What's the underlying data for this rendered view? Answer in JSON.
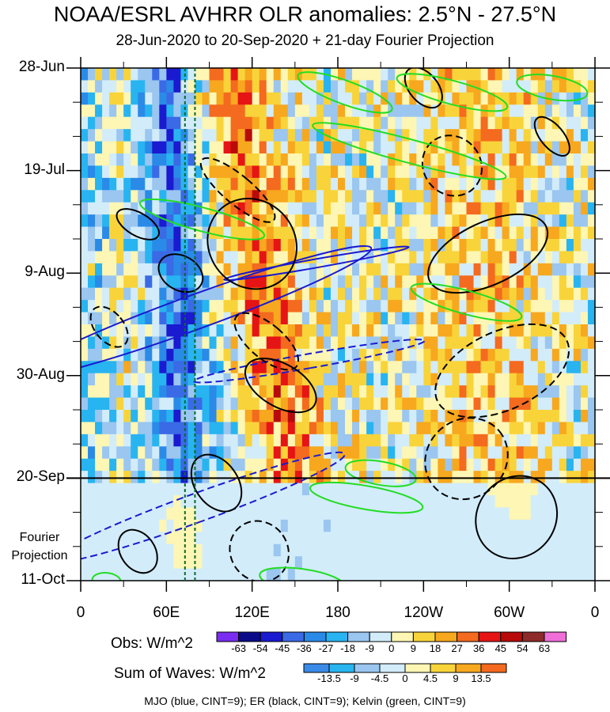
{
  "chart_data": {
    "type": "heatmap",
    "title": "NOAA/ESRL AVHRR OLR anomalies: 2.5°N - 27.5°N",
    "subtitle": "28-Jun-2020 to 20-Sep-2020 + 21-day Fourier Projection",
    "x_ticks": [
      "0",
      "60E",
      "120E",
      "180",
      "120W",
      "60W",
      "0"
    ],
    "x_tick_values": [
      0,
      60,
      120,
      180,
      240,
      300,
      360
    ],
    "xlim": [
      0,
      360
    ],
    "y_ticks": [
      "28-Jun",
      "19-Jul",
      "9-Aug",
      "30-Aug",
      "20-Sep",
      "11-Oct"
    ],
    "y_tick_values": [
      "2020-06-28",
      "2020-07-19",
      "2020-08-09",
      "2020-08-30",
      "2020-09-20",
      "2020-10-11"
    ],
    "ylim": [
      "2020-06-28",
      "2020-10-11"
    ],
    "projection_start": "2020-09-20",
    "projection_label": "Fourier Projection",
    "vertical_reference_lines_lon": [
      73,
      80
    ],
    "obs_colorbar": {
      "label": "Obs: W/m^2",
      "levels": [
        "-63",
        "-54",
        "-45",
        "-36",
        "-27",
        "-18",
        "-9",
        "0",
        "9",
        "18",
        "27",
        "36",
        "45",
        "54",
        "63"
      ],
      "colors": [
        "#7a2cf0",
        "#0b0b8a",
        "#1a1ad0",
        "#3a6ae6",
        "#2a8ae8",
        "#28b4f0",
        "#9ac6f0",
        "#d2ecfa",
        "#fdf6b4",
        "#f8d43a",
        "#f7a81e",
        "#f46a1e",
        "#e61414",
        "#b80a0a",
        "#8e2a2a",
        "#f06ed8"
      ]
    },
    "waves_colorbar": {
      "label": "Sum of Waves: W/m^2",
      "levels": [
        "-13.5",
        "-9",
        "-4.5",
        "0",
        "4.5",
        "9",
        "13.5"
      ],
      "colors": [
        "#3a8ae8",
        "#28b4f0",
        "#9ac6f0",
        "#d2ecfa",
        "#fdf6b4",
        "#f8d43a",
        "#f7a81e",
        "#f46a1e"
      ]
    },
    "contour_legend": "MJO (blue, CINT=9); ER (black, CINT=9); Kelvin (green, CINT=9)",
    "contour_colors": {
      "MJO": "#1a1ad0",
      "ER": "#000000",
      "Kelvin": "#22dd22"
    }
  }
}
